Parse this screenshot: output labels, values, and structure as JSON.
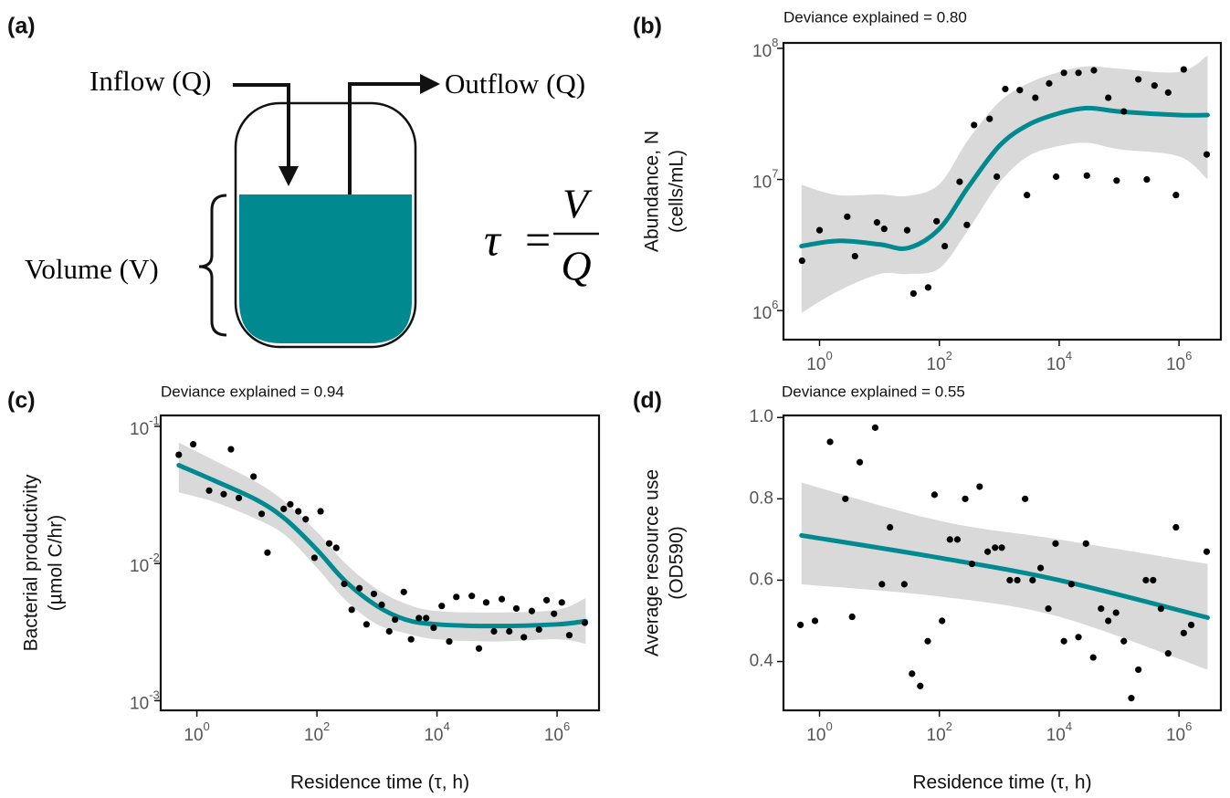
{
  "diagram": {
    "label": "(a)",
    "inflow": "Inflow (Q)",
    "outflow": "Outflow (Q)",
    "volume": "Volume (V)",
    "equation": {
      "lhs": "τ",
      "operator": "=",
      "numerator": "V",
      "denominator": "Q"
    },
    "liquid_color": "#00898f"
  },
  "chart_data": [
    {
      "type": "scatter",
      "panel": "(b)",
      "annotation": "Deviance explained = 0.80",
      "ylabel": [
        "Abundance, N",
        "(cells/mL)"
      ],
      "log_x": true,
      "log_y": true,
      "color": "#000000",
      "x": [
        0.51,
        1,
        2.9,
        3.9,
        9.1,
        12,
        29,
        37,
        65,
        90,
        123,
        218,
        288,
        380,
        690,
        910,
        1260,
        2200,
        2900,
        4000,
        6800,
        8900,
        12000,
        21000,
        29000,
        38000,
        66000,
        91000,
        120000,
        210000,
        290000,
        390000,
        660000,
        890000,
        1200000,
        2900000
      ],
      "values": [
        2400000.0,
        4100000.0,
        5200000.0,
        2600000.0,
        4700000.0,
        4200000.0,
        4100000.0,
        1350000.0,
        1500000.0,
        4800000.0,
        3100000.0,
        9600000.0,
        4500000.0,
        26000000.0,
        29000000.0,
        10500000.0,
        49000000.0,
        48000000.0,
        7600000.0,
        42000000.0,
        54000000.0,
        10500000.0,
        65000000.0,
        65000000.0,
        10700000.0,
        68000000.0,
        42000000.0,
        9800000.0,
        33000000.0,
        58000000.0,
        10000000.0,
        52000000.0,
        46000000.0,
        7600000.0,
        69000000.0,
        15500000.0
      ],
      "fit": {
        "color": "#00898f",
        "x": [
          0.5,
          2,
          10,
          30,
          100,
          300,
          1000,
          3000,
          10000,
          30000,
          100000,
          1000000,
          3000000
        ],
        "values": [
          3100000.0,
          3400000.0,
          3200000.0,
          3000000.0,
          4200000.0,
          8700000.0,
          18000000.0,
          26000000.0,
          32000000.0,
          35000000.0,
          33000000.0,
          31000000.0,
          31000000.0
        ]
      },
      "band": {
        "color": "#d9d9d9",
        "x": [
          0.5,
          2,
          10,
          30,
          100,
          300,
          1000,
          3000,
          10000,
          30000,
          100000,
          1000000,
          3000000
        ],
        "upper": [
          9100000.0,
          7600000.0,
          7700000.0,
          7500000.0,
          9200000.0,
          20000000.0,
          39000000.0,
          54000000.0,
          66000000.0,
          73000000.0,
          70000000.0,
          66000000.0,
          88000000.0
        ],
        "lower": [
          960000.0,
          1400000.0,
          1900000.0,
          1900000.0,
          2100000.0,
          4100000.0,
          9400000.0,
          15000000.0,
          18000000.0,
          19000000.0,
          17000000.0,
          15000000.0,
          10000000.0
        ]
      },
      "xlim": [
        0.25,
        5000000
      ],
      "ylim": [
        600000,
        110000000
      ],
      "xticks": [
        {
          "value": 1,
          "label": "10",
          "exponent": "0"
        },
        {
          "value": 100,
          "label": "10",
          "exponent": "2"
        },
        {
          "value": 10000,
          "label": "10",
          "exponent": "4"
        },
        {
          "value": 1000000,
          "label": "10",
          "exponent": "6"
        }
      ],
      "yticks": [
        {
          "value": 1000000,
          "label": "10",
          "exponent": "6"
        },
        {
          "value": 10000000,
          "label": "10",
          "exponent": "7"
        },
        {
          "value": 100000000,
          "label": "10",
          "exponent": "8"
        }
      ]
    },
    {
      "type": "scatter",
      "panel": "(c)",
      "annotation": "Deviance explained = 0.94",
      "ylabel": [
        "Bacterial productivity",
        "(µmol C/hr)"
      ],
      "xlabel": "Residence time (τ, h)",
      "log_x": true,
      "log_y": true,
      "color": "#000000",
      "x": [
        0.5,
        0.87,
        1.6,
        2.8,
        3.7,
        5.0,
        8.8,
        12,
        15,
        28,
        36,
        49,
        65,
        91,
        115,
        160,
        210,
        285,
        380,
        510,
        670,
        890,
        1200,
        1600,
        2000,
        2800,
        3700,
        5000,
        6600,
        8800,
        12000,
        16000,
        21000,
        38000,
        50000,
        66000,
        89000,
        120000,
        160000,
        210000,
        280000,
        380000,
        500000,
        670000,
        890000,
        1200000,
        1600000,
        2900000
      ],
      "values": [
        0.062,
        0.074,
        0.034,
        0.032,
        0.068,
        0.03,
        0.043,
        0.023,
        0.012,
        0.025,
        0.027,
        0.024,
        0.021,
        0.011,
        0.024,
        0.014,
        0.013,
        0.0071,
        0.0046,
        0.0066,
        0.0036,
        0.006,
        0.005,
        0.0032,
        0.0039,
        0.0062,
        0.0028,
        0.004,
        0.004,
        0.0034,
        0.0049,
        0.0027,
        0.0057,
        0.0058,
        0.0024,
        0.0052,
        0.0032,
        0.0055,
        0.0032,
        0.0047,
        0.0029,
        0.0045,
        0.0033,
        0.0054,
        0.0043,
        0.0052,
        0.003,
        0.0037
      ],
      "fit": {
        "color": "#00898f",
        "x": [
          0.5,
          2,
          10,
          30,
          100,
          300,
          1000,
          3000,
          10000,
          100000,
          1000000,
          3000000
        ],
        "values": [
          0.052,
          0.04,
          0.029,
          0.021,
          0.0126,
          0.0074,
          0.0049,
          0.0039,
          0.0036,
          0.0035,
          0.0036,
          0.0038
        ]
      },
      "band": {
        "color": "#d9d9d9",
        "x": [
          0.5,
          2,
          10,
          30,
          100,
          300,
          1000,
          3000,
          10000,
          100000,
          1000000,
          3000000
        ],
        "upper": [
          0.076,
          0.056,
          0.039,
          0.028,
          0.017,
          0.01,
          0.0065,
          0.0051,
          0.0045,
          0.0044,
          0.0046,
          0.0056
        ],
        "lower": [
          0.033,
          0.028,
          0.021,
          0.016,
          0.0093,
          0.0054,
          0.0036,
          0.0031,
          0.0028,
          0.0027,
          0.0028,
          0.0026
        ]
      },
      "xlim": [
        0.25,
        5000000
      ],
      "ylim": [
        0.00085,
        0.12
      ],
      "xticks": [
        {
          "value": 1,
          "label": "10",
          "exponent": "0"
        },
        {
          "value": 100,
          "label": "10",
          "exponent": "2"
        },
        {
          "value": 10000,
          "label": "10",
          "exponent": "4"
        },
        {
          "value": 1000000,
          "label": "10",
          "exponent": "6"
        }
      ],
      "yticks": [
        {
          "value": 0.001,
          "label": "10",
          "exponent": "-3"
        },
        {
          "value": 0.01,
          "label": "10",
          "exponent": "-2"
        },
        {
          "value": 0.1,
          "label": "10",
          "exponent": "-1"
        }
      ]
    },
    {
      "type": "scatter",
      "panel": "(d)",
      "annotation": "Deviance explained = 0.55",
      "ylabel": [
        "Average resource use",
        "(OD590)"
      ],
      "xlabel": "Residence time (τ, h)",
      "log_x": true,
      "log_y": false,
      "color": "#000000",
      "x": [
        0.48,
        0.84,
        1.5,
        2.7,
        3.5,
        4.7,
        8.5,
        11,
        15,
        26,
        35,
        48,
        64,
        83,
        111,
        150,
        200,
        270,
        350,
        470,
        640,
        850,
        1100,
        1500,
        2000,
        2700,
        3600,
        4900,
        6600,
        8700,
        12000,
        16000,
        21000,
        28000,
        37000,
        50000,
        66000,
        89000,
        120000,
        160000,
        210000,
        280000,
        370000,
        500000,
        660000,
        890000,
        1200000,
        1600000,
        2900000
      ],
      "values": [
        0.49,
        0.5,
        0.94,
        0.8,
        0.51,
        0.89,
        0.975,
        0.59,
        0.73,
        0.59,
        0.37,
        0.34,
        0.45,
        0.81,
        0.5,
        0.7,
        0.7,
        0.8,
        0.64,
        0.83,
        0.67,
        0.68,
        0.68,
        0.6,
        0.6,
        0.8,
        0.6,
        0.63,
        0.53,
        0.69,
        0.45,
        0.59,
        0.46,
        0.69,
        0.41,
        0.53,
        0.5,
        0.52,
        0.45,
        0.31,
        0.38,
        0.6,
        0.6,
        0.53,
        0.42,
        0.73,
        0.47,
        0.49,
        0.67
      ],
      "fit": {
        "color": "#00898f",
        "x": [
          0.5,
          100,
          10000,
          3000000
        ],
        "values": [
          0.71,
          0.655,
          0.6,
          0.508
        ]
      },
      "band": {
        "color": "#d9d9d9",
        "x": [
          0.5,
          100,
          10000,
          3000000
        ],
        "upper": [
          0.84,
          0.746,
          0.7,
          0.64
        ],
        "lower": [
          0.59,
          0.56,
          0.51,
          0.38
        ]
      },
      "xlim": [
        0.25,
        5000000
      ],
      "ylim": [
        0.28,
        1.005
      ],
      "xticks": [
        {
          "value": 1,
          "label": "10",
          "exponent": "0"
        },
        {
          "value": 100,
          "label": "10",
          "exponent": "2"
        },
        {
          "value": 10000,
          "label": "10",
          "exponent": "4"
        },
        {
          "value": 1000000,
          "label": "10",
          "exponent": "6"
        }
      ],
      "yticks": [
        0.4,
        0.6,
        0.8,
        {
          "value": 1,
          "label": "1.0"
        }
      ]
    }
  ]
}
